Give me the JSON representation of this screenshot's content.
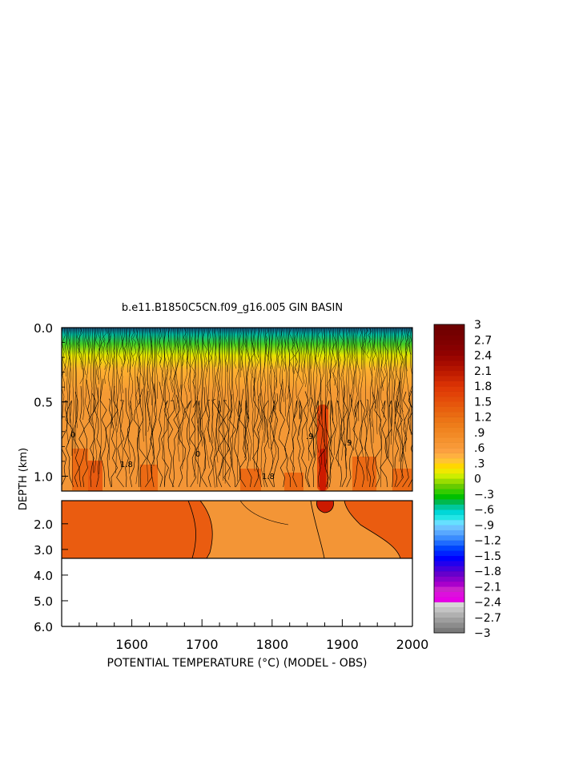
{
  "chart_data": {
    "type": "heatmap",
    "title": "b.e11.B1850C5CN.f09_g16.005 GIN BASIN",
    "xlabel": "POTENTIAL TEMPERATURE (°C) (MODEL - OBS)",
    "ylabel": "DEPTH (km)",
    "xlim": [
      1500,
      2000
    ],
    "x_ticks": [
      1600,
      1700,
      1800,
      1900,
      2000
    ],
    "x_tick_labels": [
      "1600",
      "1700",
      "1800",
      "1900",
      "2000"
    ],
    "upper_panel": {
      "ylim": [
        0.0,
        1.1
      ],
      "y_ticks": [
        0.0,
        0.5,
        1.0
      ],
      "y_tick_labels": [
        "0.0",
        "0.5",
        "1.0"
      ]
    },
    "lower_panel": {
      "ylim": [
        1.1,
        6.0
      ],
      "y_ticks": [
        2.0,
        3.0,
        4.0,
        5.0,
        6.0
      ],
      "y_tick_labels": [
        "2.0",
        "3.0",
        "4.0",
        "5.0",
        "6.0"
      ],
      "data_bottom_depth": 3.3
    },
    "contour_labels": [
      "0",
      "0",
      ".9",
      ".9",
      "1.8",
      "1.8"
    ],
    "colorbar": {
      "min": -3,
      "max": 3,
      "labels": [
        "3",
        "2.7",
        "2.4",
        "2.1",
        "1.8",
        "1.5",
        "1.2",
        ".9",
        ".6",
        ".3",
        "0",
        "−.3",
        "−.6",
        "−.9",
        "−1.2",
        "−1.5",
        "−1.8",
        "−2.1",
        "−2.4",
        "−2.7",
        "−3"
      ],
      "label_values": [
        3,
        2.7,
        2.4,
        2.1,
        1.8,
        1.5,
        1.2,
        0.9,
        0.6,
        0.3,
        0,
        -0.3,
        -0.6,
        -0.9,
        -1.2,
        -1.5,
        -1.8,
        -2.1,
        -2.4,
        -2.7,
        -3
      ],
      "colors": [
        "#7a7a7a",
        "#8c8c8c",
        "#9e9e9e",
        "#b0b0b0",
        "#c4c4c4",
        "#d6d6d6",
        "#e600e6",
        "#dd10dd",
        "#cc22cc",
        "#aa00cc",
        "#8800cc",
        "#6600cc",
        "#4400dd",
        "#2200ee",
        "#0000ff",
        "#0022ff",
        "#0044ff",
        "#1e6bff",
        "#3a8cff",
        "#58a8ff",
        "#6cc2ff",
        "#66e0ff",
        "#22e6e6",
        "#00d8d8",
        "#00c89b",
        "#00b94e",
        "#00c000",
        "#33cc00",
        "#66cc00",
        "#99dd00",
        "#ccee00",
        "#f0e800",
        "#ffd700",
        "#ffc433",
        "#ffb040",
        "#fca040",
        "#f89836",
        "#f5922e",
        "#f28a26",
        "#f08420",
        "#ee7c1a",
        "#ec7416",
        "#ea6a12",
        "#e8600e",
        "#e6560c",
        "#e44c0a",
        "#e24208",
        "#e03a06",
        "#d83004",
        "#cc2602",
        "#c01c00",
        "#b41400",
        "#a80c00",
        "#9c0600",
        "#900200",
        "#880000",
        "#800000",
        "#7a0000",
        "#740000",
        "#6e0000"
      ]
    },
    "grid": false
  }
}
